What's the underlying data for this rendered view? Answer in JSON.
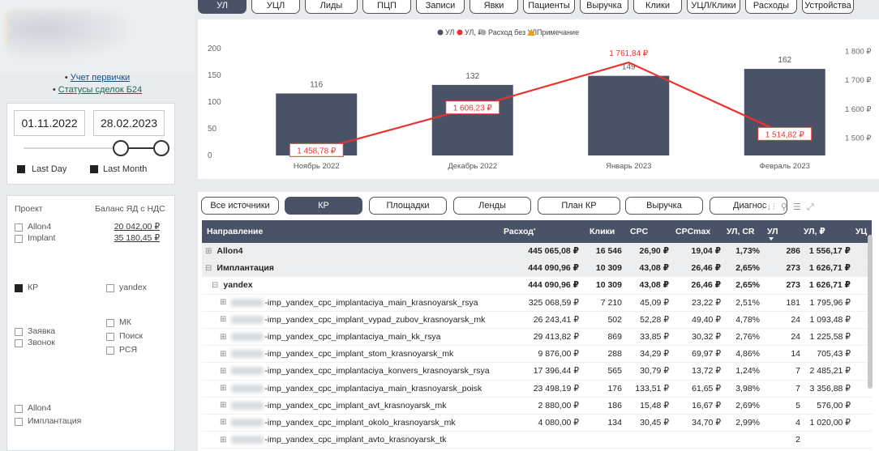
{
  "links": {
    "link1": "Учет первички",
    "link2": "Статусы сделок Б24"
  },
  "date_filter": {
    "start": "01.11.2022",
    "end": "28.02.2023",
    "last_day": "Last Day",
    "last_month": "Last Month"
  },
  "project_panel": {
    "col1": "Проект",
    "col2": "Баланс ЯД с НДС",
    "projects": [
      {
        "name": "Allon4",
        "balance": "20 042,00 ₽"
      },
      {
        "name": "Implant",
        "balance": "35 180,45 ₽"
      }
    ],
    "source_kp": "КР",
    "source_yandex": "yandex",
    "type_zayavka": "Заявка",
    "type_zvonok": "Звонок",
    "ch_mk": "МК",
    "ch_poisk": "Поиск",
    "ch_rsya": "РСЯ",
    "dir_allon4": "Allon4",
    "dir_implant": "Имплантация"
  },
  "top_tabs": [
    "УЛ",
    "УЦЛ",
    "Лиды",
    "ПЦП",
    "Записи",
    "Явки",
    "Пациенты",
    "Выручка",
    "Клики",
    "УЦЛ/Клики",
    "Расходы",
    "Устройства"
  ],
  "chart_data": {
    "type": "bar",
    "legend": [
      "УЛ",
      "УЛ, ₽",
      "Расход без УЛ",
      "Примечание"
    ],
    "categories": [
      "Ноябрь 2022",
      "Декабрь 2022",
      "Январь 2023",
      "Февраль 2023"
    ],
    "series": [
      {
        "name": "УЛ",
        "type": "bar",
        "values": [
          116,
          132,
          149,
          162
        ]
      },
      {
        "name": "УЛ, ₽",
        "type": "line",
        "values": [
          1458.78,
          1606.23,
          1761.84,
          1514.82
        ]
      }
    ],
    "bar_labels": [
      "116",
      "132",
      "149",
      "162"
    ],
    "line_labels": [
      "1 458,78 ₽",
      "1 606,23 ₽",
      "1 761,84 ₽",
      "1 514,82 ₽"
    ],
    "y_left": {
      "ticks": [
        "0",
        "50",
        "100",
        "150",
        "200"
      ],
      "range": [
        0,
        200
      ]
    },
    "y_right": {
      "ticks": [
        "1 500 ₽",
        "1 600 ₽",
        "1 700 ₽",
        "1 800 ₽"
      ],
      "range": [
        1440,
        1810
      ]
    },
    "colors": {
      "bar": "#4a5268",
      "line": "#e8332f",
      "expense": "#aaaaaa",
      "note": "#e8a400"
    }
  },
  "bottom_tabs": [
    "Все источники",
    "КР",
    "Площадки",
    "Ленды",
    "План КР",
    "Выручка",
    "Диагнос"
  ],
  "table": {
    "headers": [
      "Направление",
      "Расход'",
      "Клики",
      "CPC",
      "CPCmax",
      "УЛ, CR",
      "УЛ",
      "УЛ, ₽",
      "УЦ"
    ],
    "rows": [
      {
        "level": "grp",
        "exp": "⊞",
        "name": "Allon4",
        "values": [
          "445 065,08 ₽",
          "16 546",
          "26,90 ₽",
          "19,04 ₽",
          "1,73%",
          "286",
          "1 556,17 ₽"
        ]
      },
      {
        "level": "grp",
        "exp": "⊟",
        "name": "Имплантация",
        "values": [
          "444 090,96 ₽",
          "10 309",
          "43,08 ₽",
          "26,46 ₽",
          "2,65%",
          "273",
          "1 626,71 ₽"
        ]
      },
      {
        "level": "sub",
        "exp": "⊟",
        "name": "yandex",
        "values": [
          "444 090,96 ₽",
          "10 309",
          "43,08 ₽",
          "26,46 ₽",
          "2,65%",
          "273",
          "1 626,71 ₽"
        ]
      },
      {
        "level": "leaf",
        "exp": "⊞",
        "name": "-imp_yandex_cpc_implantaciya_main_krasnoyarsk_rsya",
        "values": [
          "325 068,59 ₽",
          "7 210",
          "45,09 ₽",
          "23,22 ₽",
          "2,51%",
          "181",
          "1 795,96 ₽"
        ]
      },
      {
        "level": "leaf",
        "exp": "⊞",
        "name": "-imp_yandex_cpc_implant_vypad_zubov_krasnoyarsk_mk",
        "values": [
          "26 243,41 ₽",
          "502",
          "52,28 ₽",
          "49,40 ₽",
          "4,78%",
          "24",
          "1 093,48 ₽"
        ]
      },
      {
        "level": "leaf",
        "exp": "⊞",
        "name": "-imp_yandex_cpc_implantaciya_main_kk_rsya",
        "values": [
          "29 413,82 ₽",
          "869",
          "33,85 ₽",
          "30,32 ₽",
          "2,76%",
          "24",
          "1 225,58 ₽"
        ]
      },
      {
        "level": "leaf",
        "exp": "⊞",
        "name": "-imp_yandex_cpc_implant_stom_krasnoyarsk_mk",
        "values": [
          "9 876,00 ₽",
          "288",
          "34,29 ₽",
          "69,97 ₽",
          "4,86%",
          "14",
          "705,43 ₽"
        ]
      },
      {
        "level": "leaf",
        "exp": "⊞",
        "name": "-imp_yandex_cpc_implantaciya_konvers_krasnoyarsk_rsya",
        "values": [
          "17 396,44 ₽",
          "565",
          "30,79 ₽",
          "13,72 ₽",
          "1,24%",
          "7",
          "2 485,21 ₽"
        ]
      },
      {
        "level": "leaf",
        "exp": "⊞",
        "name": "-imp_yandex_cpc_implantaciya_main_krasnoyarsk_poisk",
        "values": [
          "23 498,19 ₽",
          "176",
          "133,51 ₽",
          "61,65 ₽",
          "3,98%",
          "7",
          "3 356,88 ₽"
        ]
      },
      {
        "level": "leaf",
        "exp": "⊞",
        "name": "-imp_yandex_cpc_implant_avt_krasnoyarsk_mk",
        "values": [
          "2 880,00 ₽",
          "186",
          "15,48 ₽",
          "16,67 ₽",
          "2,69%",
          "5",
          "576,00 ₽"
        ]
      },
      {
        "level": "leaf",
        "exp": "⊞",
        "name": "-imp_yandex_cpc_implant_okolo_krasnoyarsk_mk",
        "values": [
          "4 080,00 ₽",
          "134",
          "30,45 ₽",
          "34,70 ₽",
          "2,99%",
          "4",
          "1 020,00 ₽"
        ]
      },
      {
        "level": "leaf",
        "exp": "⊞",
        "name": "-imp_yandex_cpc_implant_avto_krasnoyarsk_tk",
        "values": [
          "",
          "",
          "",
          "",
          "",
          "2",
          ""
        ]
      }
    ]
  }
}
